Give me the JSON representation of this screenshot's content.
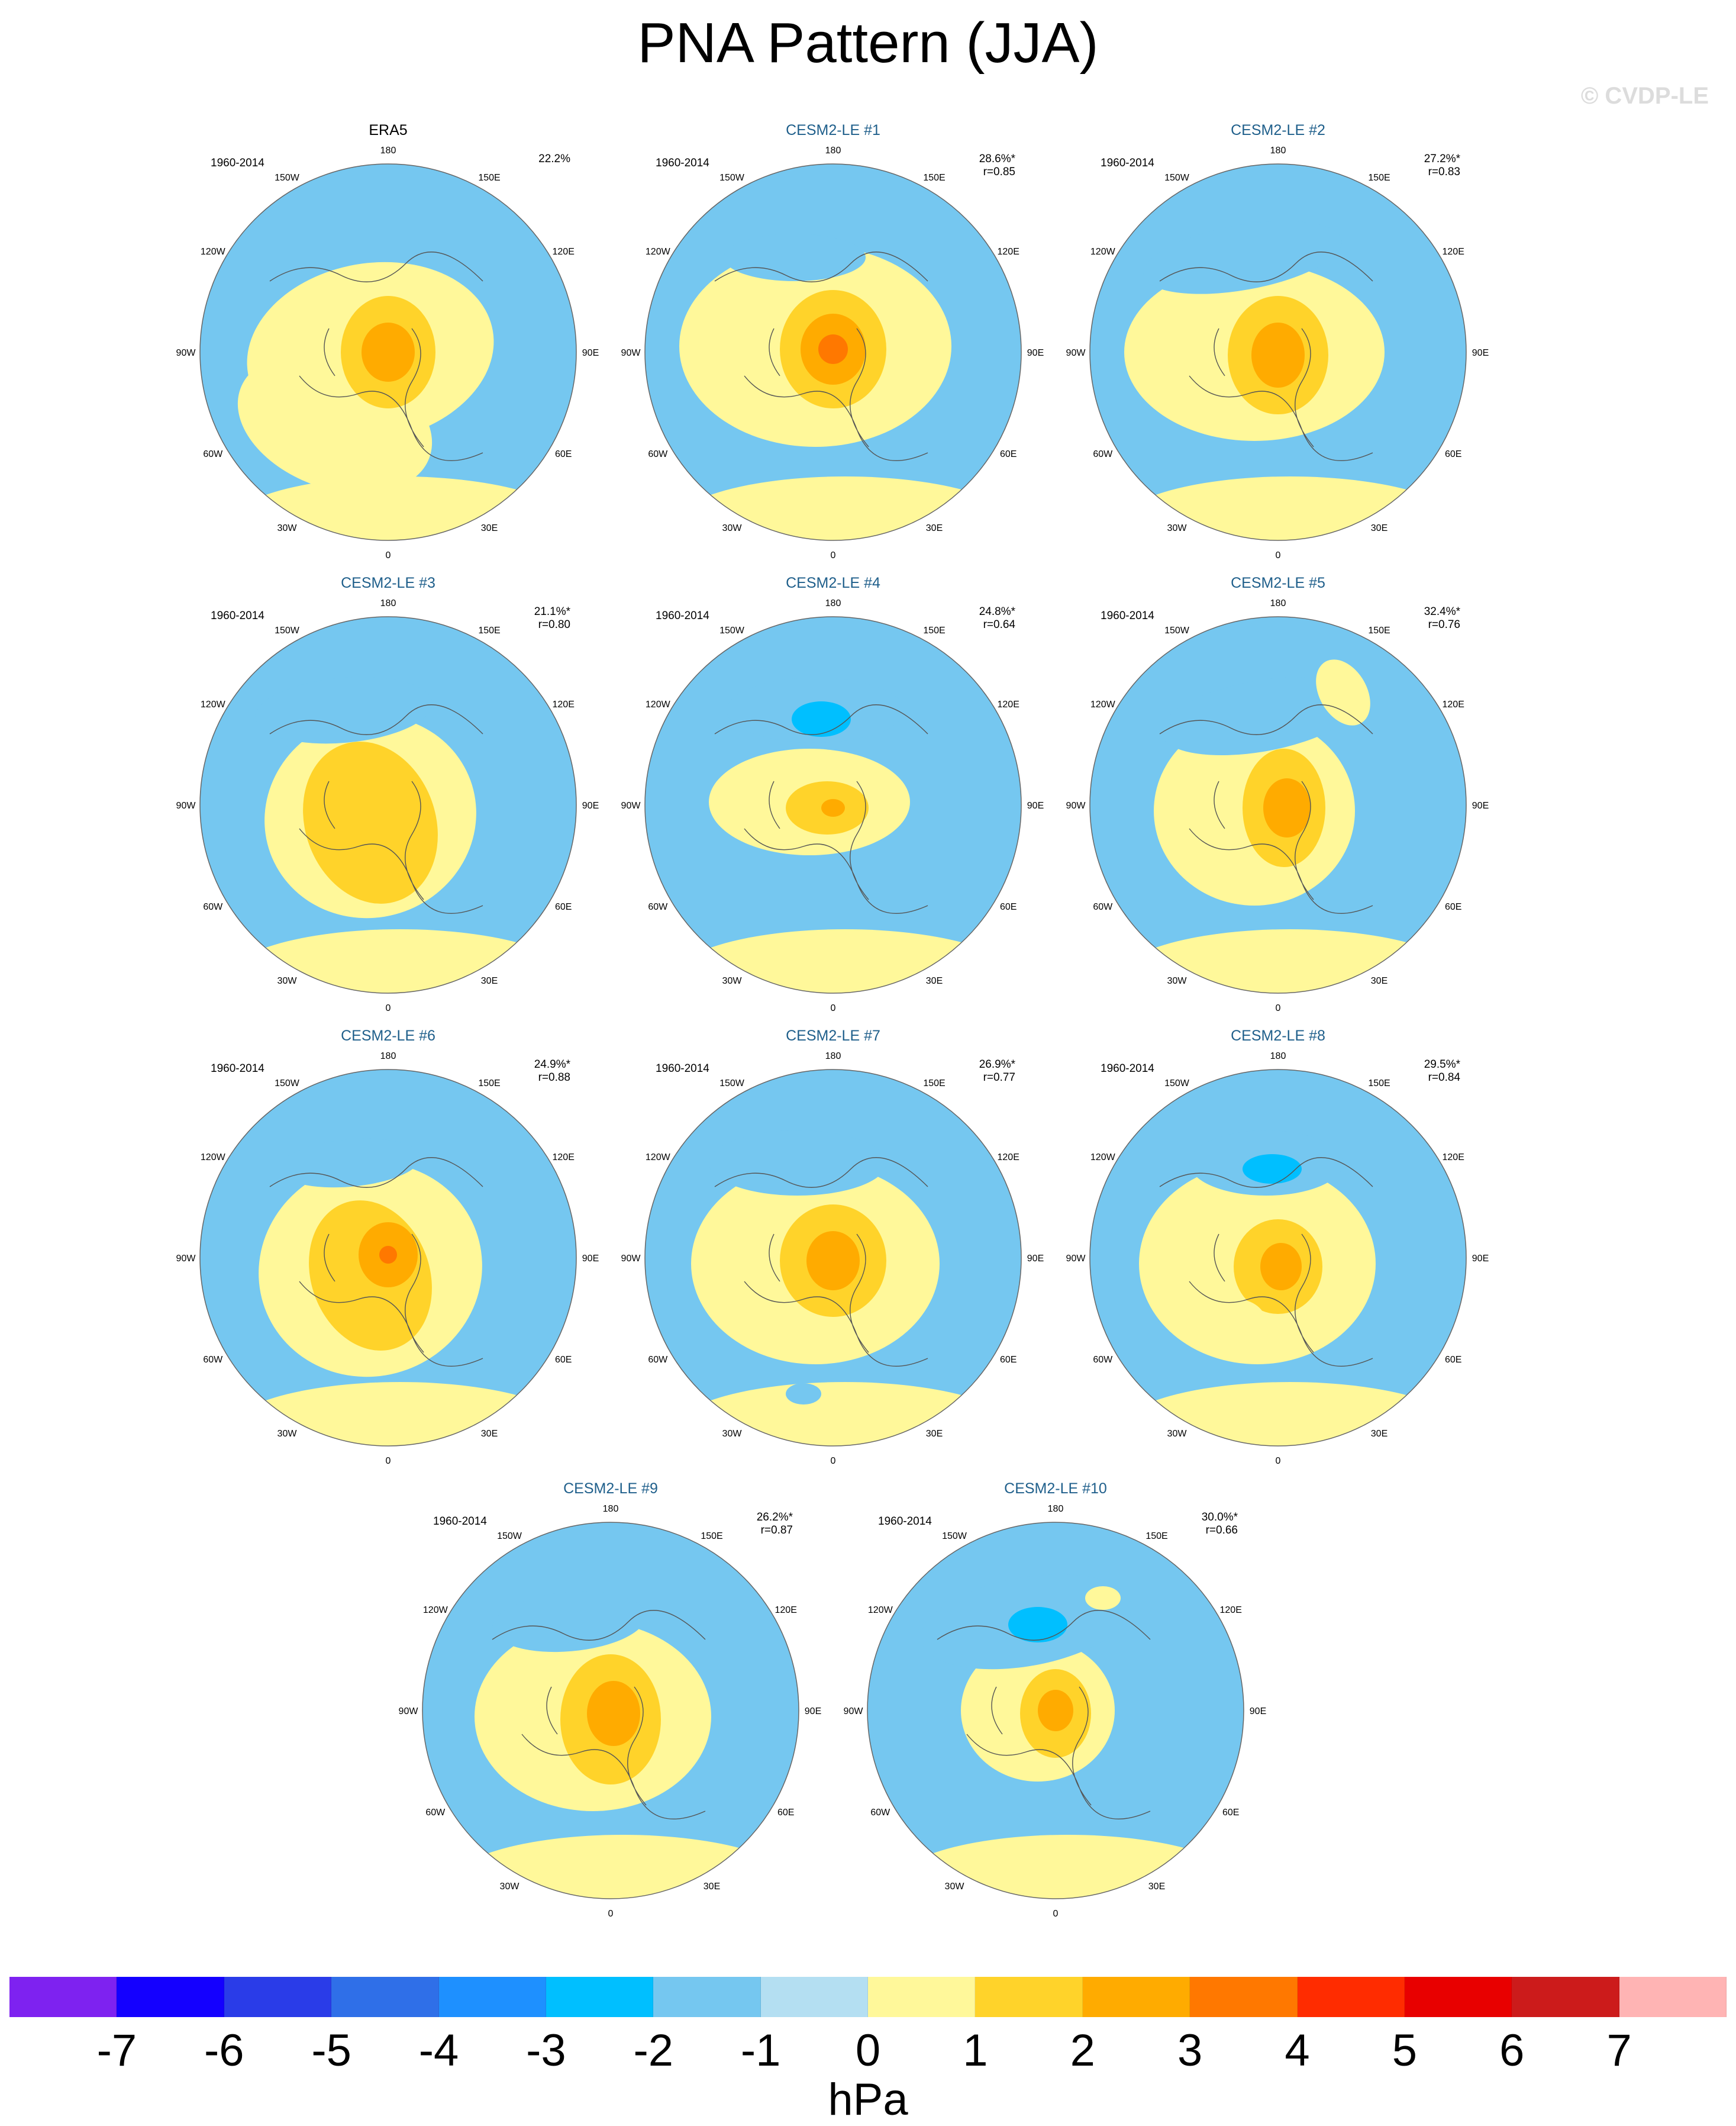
{
  "title": "PNA Pattern (JJA)",
  "copyright": "© CVDP-LE",
  "period": "1960-2014",
  "lon_labels": [
    "180",
    "150E",
    "120E",
    "90E",
    "60E",
    "30E",
    "0",
    "30W",
    "60W",
    "90W",
    "120W",
    "150W"
  ],
  "panels": [
    {
      "title": "ERA5",
      "pct": "22.2%",
      "r": "",
      "kind": "obs"
    },
    {
      "title": "CESM2-LE #1",
      "pct": "28.6%*",
      "r": "r=0.85",
      "kind": "model"
    },
    {
      "title": "CESM2-LE #2",
      "pct": "27.2%*",
      "r": "r=0.83",
      "kind": "model"
    },
    {
      "title": "CESM2-LE #3",
      "pct": "21.1%*",
      "r": "r=0.80",
      "kind": "model"
    },
    {
      "title": "CESM2-LE #4",
      "pct": "24.8%*",
      "r": "r=0.64",
      "kind": "model"
    },
    {
      "title": "CESM2-LE #5",
      "pct": "32.4%*",
      "r": "r=0.76",
      "kind": "model"
    },
    {
      "title": "CESM2-LE #6",
      "pct": "24.9%*",
      "r": "r=0.88",
      "kind": "model"
    },
    {
      "title": "CESM2-LE #7",
      "pct": "26.9%*",
      "r": "r=0.77",
      "kind": "model"
    },
    {
      "title": "CESM2-LE #8",
      "pct": "29.5%*",
      "r": "r=0.84",
      "kind": "model"
    },
    {
      "title": "CESM2-LE #9",
      "pct": "26.2%*",
      "r": "r=0.87",
      "kind": "model"
    },
    {
      "title": "CESM2-LE #10",
      "pct": "30.0%*",
      "r": "r=0.66",
      "kind": "model"
    }
  ],
  "chart_data": {
    "type": "heatmap",
    "title": "PNA Pattern (JJA)",
    "units": "hPa",
    "colorbar": {
      "levels": [
        -7,
        -6,
        -5,
        -4,
        -3,
        -2,
        -1,
        0,
        1,
        2,
        3,
        4,
        5,
        6,
        7
      ],
      "colors": [
        "#7e22f0",
        "#1400ff",
        "#2a3ce8",
        "#2f6fe8",
        "#1e90ff",
        "#00bfff",
        "#75c7f0",
        "#b4dff2",
        "#fff89a",
        "#ffd32a",
        "#ffab00",
        "#ff7800",
        "#ff2c00",
        "#e80000",
        "#cc1b1b",
        "#ffb4b4"
      ]
    }
  }
}
